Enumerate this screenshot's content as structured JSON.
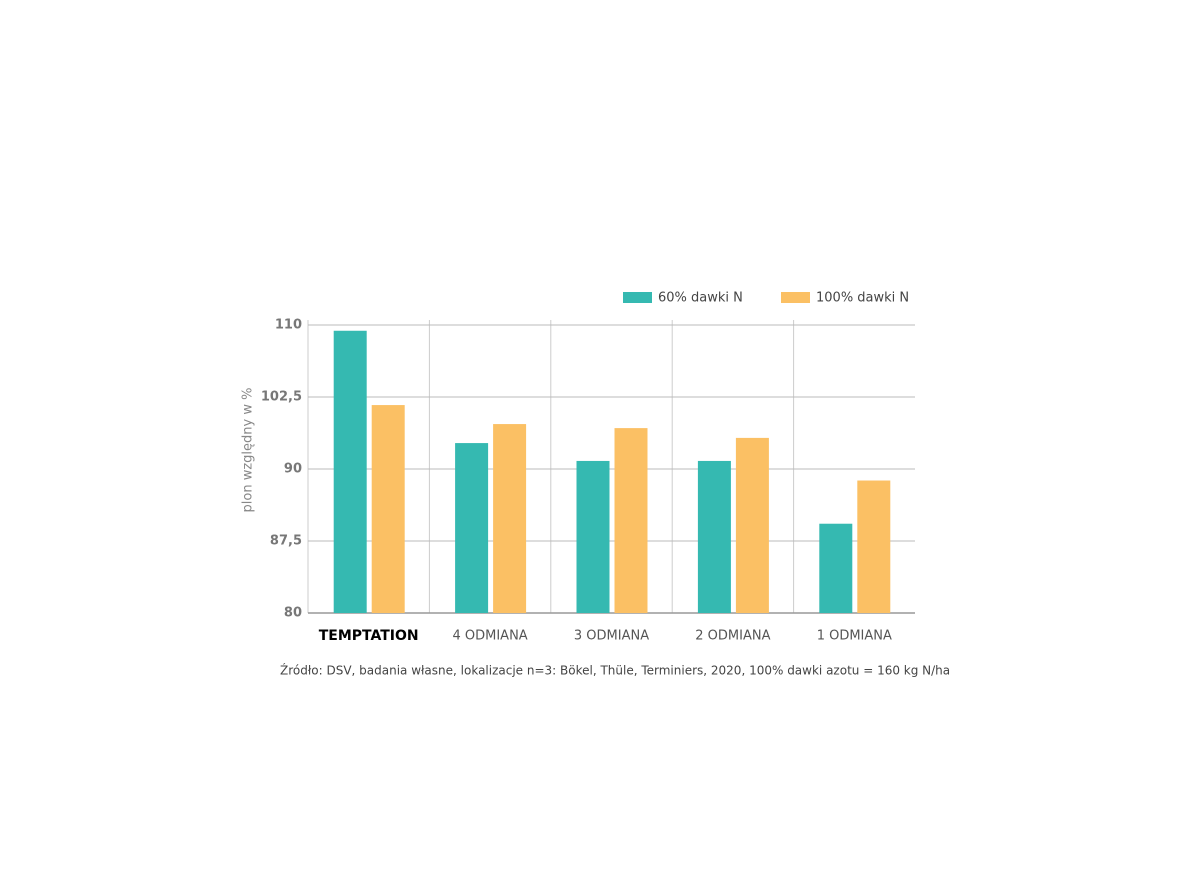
{
  "chart_data": {
    "type": "bar",
    "y_label": "plon względny w %",
    "note": "Źródło: DSV, badania własne, lokalizacje n=3: Bökel, Thüle, Terminiers, 2020, 100% dawki azotu = 160 kg N/ha",
    "categories": [
      "TEMPTATION",
      "4 ODMIANA",
      "3 ODMIANA",
      "2 ODMIANA",
      "1 ODMIANA"
    ],
    "series": [
      {
        "name": "60% dawki N",
        "color": "#35b9b1",
        "values": [
          109.4,
          94.5,
          91.4,
          91.4,
          88.1
        ]
      },
      {
        "name": "100% dawki N",
        "color": "#fbc064",
        "values": [
          101.1,
          97.8,
          97.1,
          95.4,
          89.6
        ]
      }
    ],
    "ylim": [
      80,
      110
    ],
    "yticks": [
      80,
      {
        "value": 87.5,
        "label": "87,5"
      },
      90,
      {
        "value": 102.5,
        "label": "102,5"
      },
      110
    ],
    "grid": true,
    "legend": "top-right"
  }
}
